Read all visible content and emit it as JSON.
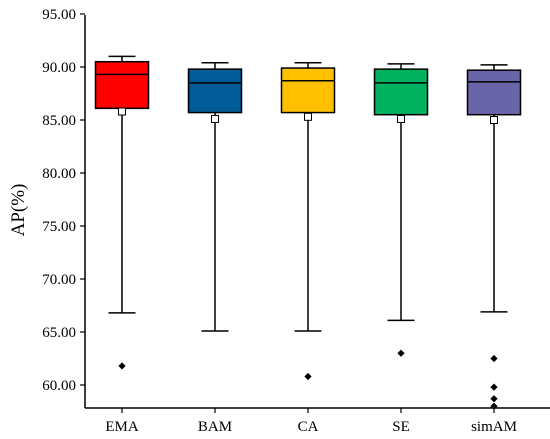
{
  "chart_data": {
    "type": "box",
    "ylabel": "AP(%)",
    "ylim": [
      58.2,
      95.0
    ],
    "yticks": [
      60,
      65,
      70,
      75,
      80,
      85,
      90,
      95
    ],
    "ytick_labels": [
      "60.00",
      "65.00",
      "70.00",
      "75.00",
      "80.00",
      "85.00",
      "90.00",
      "95.00"
    ],
    "categories": [
      "EMA",
      "BAM",
      "CA",
      "SE",
      "simAM"
    ],
    "grid": false,
    "legend": "none",
    "boxes": [
      {
        "category": "EMA",
        "whisker_low": 66.8,
        "q1": 86.1,
        "median": 89.3,
        "q3": 90.5,
        "whisker_high": 91.0,
        "mean": 85.8,
        "outliers": [
          61.8
        ],
        "color": "#ff0000"
      },
      {
        "category": "BAM",
        "whisker_low": 65.1,
        "q1": 85.7,
        "median": 88.5,
        "q3": 89.8,
        "whisker_high": 90.4,
        "mean": 85.1,
        "outliers": [],
        "color": "#005b96"
      },
      {
        "category": "CA",
        "whisker_low": 65.1,
        "q1": 85.7,
        "median": 88.7,
        "q3": 89.9,
        "whisker_high": 90.4,
        "mean": 85.3,
        "outliers": [
          60.8
        ],
        "color": "#ffc000"
      },
      {
        "category": "SE",
        "whisker_low": 66.1,
        "q1": 85.5,
        "median": 88.5,
        "q3": 89.8,
        "whisker_high": 90.3,
        "mean": 85.1,
        "outliers": [
          63.0
        ],
        "color": "#00b15f"
      },
      {
        "category": "simAM",
        "whisker_low": 66.9,
        "q1": 85.5,
        "median": 88.6,
        "q3": 89.7,
        "whisker_high": 90.2,
        "mean": 85.0,
        "outliers": [
          62.5,
          59.8,
          58.7,
          58.0
        ],
        "color": "#6a64a8"
      }
    ]
  }
}
